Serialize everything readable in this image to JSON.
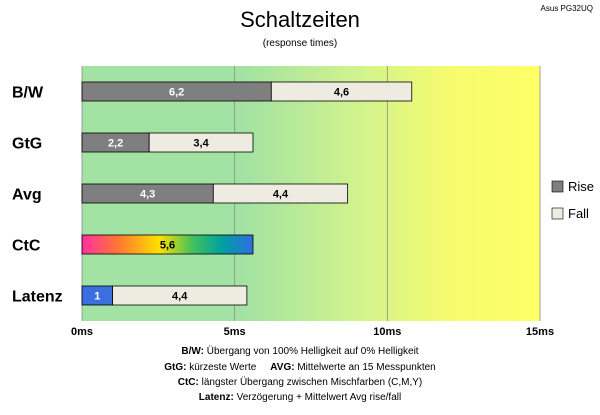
{
  "chart_data": {
    "type": "bar",
    "orientation": "horizontal",
    "stacked": true,
    "title": "Schaltzeiten",
    "subtitle": "(response times)",
    "corner_label": "Asus PG32UQ",
    "categories": [
      "B/W",
      "GtG",
      "Avg",
      "CtC",
      "Latenz"
    ],
    "series": [
      {
        "name": "Rise",
        "values": [
          6.2,
          2.2,
          4.3,
          5.6,
          1
        ],
        "labels": [
          "6,2",
          "2,2",
          "4,3",
          "5,6",
          "1"
        ]
      },
      {
        "name": "Fall",
        "values": [
          4.6,
          3.4,
          4.4,
          null,
          4.4
        ],
        "labels": [
          "4,6",
          "3,4",
          "4,4",
          "",
          "4,4"
        ]
      }
    ],
    "x_ticks": [
      {
        "value": 0,
        "label": "0ms"
      },
      {
        "value": 5,
        "label": "5ms"
      },
      {
        "value": 10,
        "label": "10ms"
      },
      {
        "value": 15,
        "label": "15ms"
      }
    ],
    "xlim": [
      0,
      15
    ],
    "grid": true,
    "legend_position": "right",
    "colors": {
      "rise": "#7f7f7f",
      "fall": "#eeece1",
      "latenz_rise": "#3b6fe0",
      "bg_green": "#a2e2a2",
      "bg_mid": "#d0f090",
      "bg_yellow": "#ffff66"
    },
    "footnotes": [
      {
        "bold": "B/W:",
        "text": " Übergang von 100% Helligkeit auf 0% Helligkeit"
      },
      {
        "bold": "GtG:",
        "text": " kürzeste Werte",
        "bold2": "AVG:",
        "text2": " Mittelwerte an 15 Messpunkten"
      },
      {
        "bold": "CtC:",
        "text": " längster Übergang zwischen Mischfarben (C,M,Y)"
      },
      {
        "bold": "Latenz:",
        "text": " Verzögerung + Mittelwert Avg rise/fall"
      }
    ]
  }
}
